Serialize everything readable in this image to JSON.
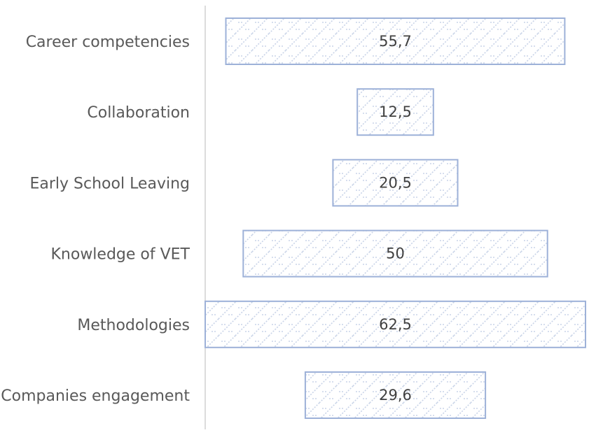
{
  "chart_data": {
    "type": "bar",
    "orientation": "horizontal-centered",
    "categories": [
      "Career competencies",
      "Collaboration",
      "Early School Leaving",
      "Knowledge of VET",
      "Methodologies",
      "Companies engagement"
    ],
    "values": [
      55.7,
      12.5,
      20.5,
      50,
      62.5,
      29.6
    ],
    "value_labels": [
      "55,7",
      "12,5",
      "20,5",
      "50",
      "62,5",
      "29,6"
    ],
    "title": "",
    "xlabel": "",
    "ylabel": "",
    "xlim": [
      0,
      62.5
    ],
    "grid": false,
    "legend": "none",
    "colors": {
      "bar_fill": "#ffffff",
      "bar_pattern": "#c7d2e6",
      "bar_stroke": "#9db1d8",
      "axis": "#d0d0d0",
      "category_text": "#595959",
      "value_text": "#404040"
    }
  }
}
